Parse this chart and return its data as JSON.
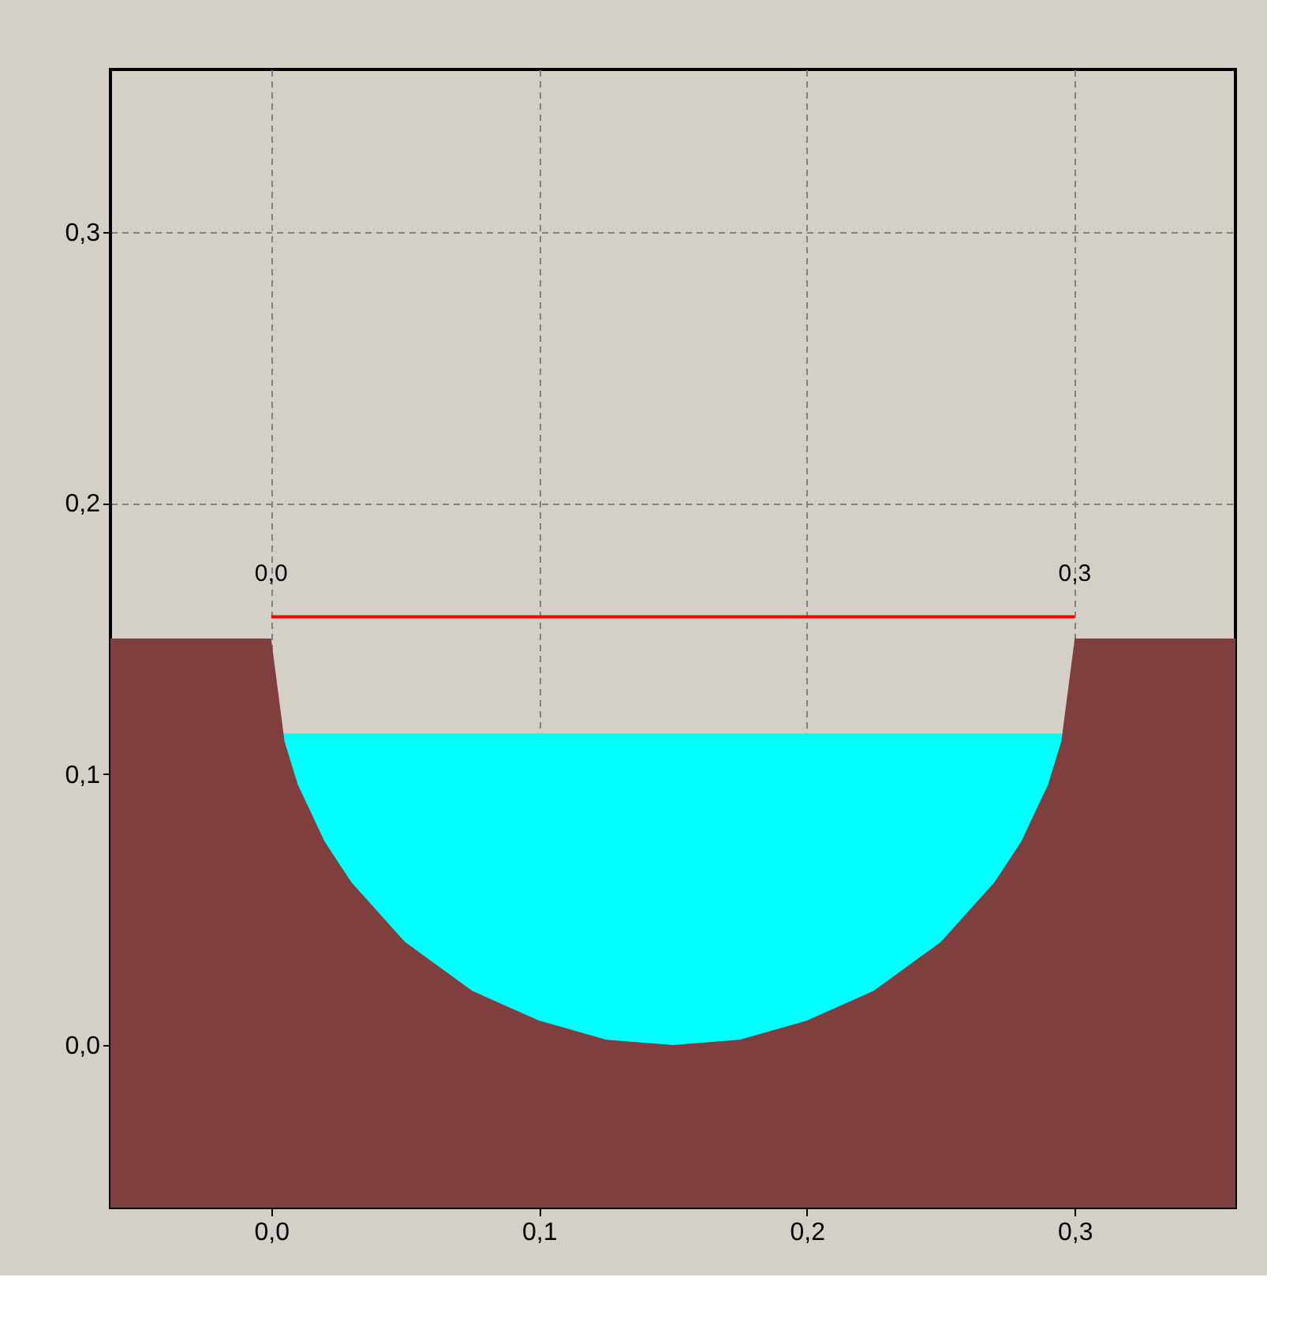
{
  "chart_data": {
    "type": "area",
    "xlim": [
      -0.06,
      0.36
    ],
    "ylim": [
      -0.06,
      0.36
    ],
    "xticks": [
      {
        "value": 0,
        "label": "0,0"
      },
      {
        "value": 0.1,
        "label": "0,1"
      },
      {
        "value": 0.2,
        "label": "0,2"
      },
      {
        "value": 0.3,
        "label": "0,3"
      }
    ],
    "yticks": [
      {
        "value": 0,
        "label": "0,0"
      },
      {
        "value": 0.1,
        "label": "0,1"
      },
      {
        "value": 0.2,
        "label": "0,2"
      },
      {
        "value": 0.3,
        "label": "0,3"
      }
    ],
    "grid": true,
    "bands": [
      {
        "axis": "y",
        "from": -0.06,
        "to": 0,
        "color": "#7f3f3f"
      }
    ],
    "series": [
      {
        "color": "#00ffff",
        "x": [
          0.004,
          0.296
        ],
        "values": [
          0.115,
          0.115
        ]
      },
      {
        "color": "#7f3f3f",
        "x": [
          -0.06,
          0,
          0.005,
          0.01,
          0.02,
          0.03,
          0.05,
          0.075,
          0.1,
          0.125,
          0.15,
          0.175,
          0.2,
          0.225,
          0.25,
          0.27,
          0.28,
          0.29,
          0.295,
          0.3,
          0.36
        ],
        "values": [
          0.15,
          0.15,
          0.112,
          0.096,
          0.075,
          0.06,
          0.038,
          0.02,
          0.009,
          0.002,
          0,
          0.002,
          0.009,
          0.02,
          0.038,
          0.06,
          0.075,
          0.096,
          0.112,
          0.15,
          0.15
        ]
      },
      {
        "type": "line",
        "color": "#ff0000",
        "x": [
          0,
          0.3
        ],
        "values": [
          0.158,
          0.158
        ]
      }
    ],
    "annotations": [
      {
        "text": "0,0",
        "x": 0,
        "y": 0.158
      },
      {
        "text": "0,3",
        "x": 0.3,
        "y": 0.158
      }
    ]
  }
}
